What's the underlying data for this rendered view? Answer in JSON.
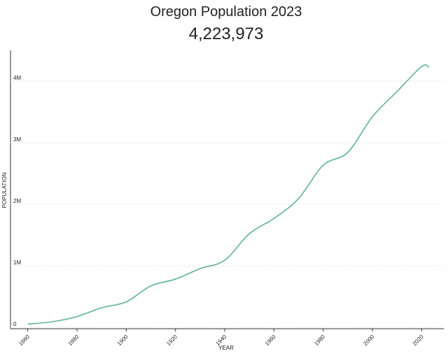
{
  "chart_data": {
    "type": "line",
    "title": "Oregon Population 2023",
    "subtitle": "4,223,973",
    "x_label": "YEAR",
    "y_label": "POPULATION",
    "x": [
      1860,
      1870,
      1880,
      1890,
      1900,
      1910,
      1920,
      1930,
      1940,
      1950,
      1960,
      1970,
      1980,
      1990,
      2000,
      2010,
      2020,
      2023
    ],
    "series": [
      {
        "name": "Population",
        "color": "#5fb48f",
        "values": [
          52465,
          90923,
          174768,
          317704,
          413536,
          672765,
          783389,
          953786,
          1089684,
          1521341,
          1768687,
          2091533,
          2633105,
          2842321,
          3421399,
          3831074,
          4237256,
          4223973
        ]
      }
    ],
    "xlim": [
      1853,
      2029
    ],
    "ylim": [
      0,
      4500000
    ],
    "xticks": [
      1860,
      1880,
      1900,
      1920,
      1940,
      1960,
      1980,
      2000,
      2020
    ],
    "yticks": [
      0,
      {
        "value": 1000000,
        "label": "1M"
      },
      {
        "value": 2000000,
        "label": "2M"
      },
      {
        "value": 3000000,
        "label": "3M"
      },
      {
        "value": 4000000,
        "label": "4M"
      }
    ],
    "grid": true
  }
}
